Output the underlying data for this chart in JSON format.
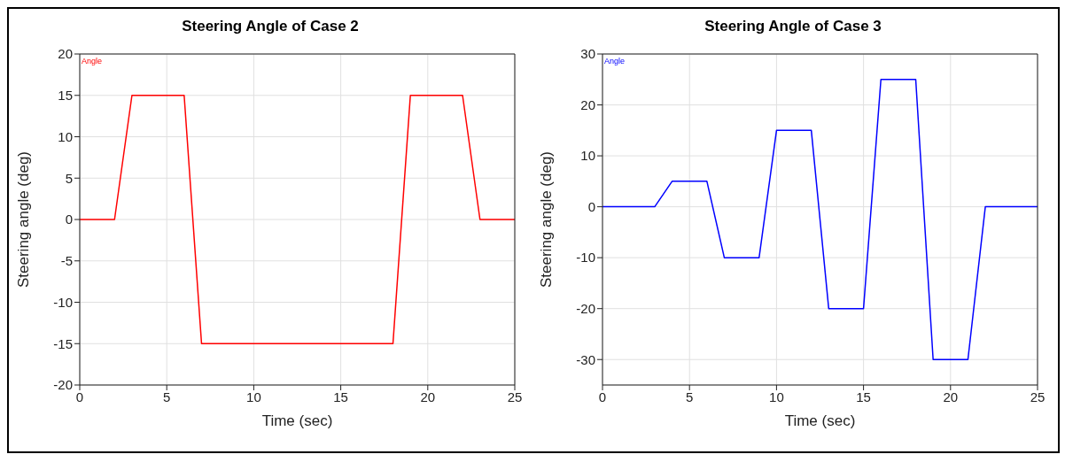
{
  "chart_data": [
    {
      "type": "line",
      "title": "Steering Angle of Case 2",
      "xlabel": "Time (sec)",
      "ylabel": "Steering angle (deg)",
      "x": [
        0,
        2,
        3,
        6,
        7,
        18,
        19,
        22,
        23,
        25
      ],
      "series": [
        {
          "name": "Angle",
          "color": "#ff0000",
          "values": [
            0,
            0,
            15,
            15,
            -15,
            -15,
            15,
            15,
            0,
            0
          ]
        }
      ],
      "xlim": [
        0,
        25
      ],
      "xticks": [
        0,
        5,
        10,
        15,
        20,
        25
      ],
      "ylim": [
        -20,
        20
      ],
      "yticks": [
        -20,
        -15,
        -10,
        -5,
        0,
        5,
        10,
        15,
        20
      ],
      "grid": true,
      "legend": "top left",
      "marker": "none",
      "line_style": "solid"
    },
    {
      "type": "line",
      "title": "Steering Angle of Case 3",
      "xlabel": "Time (sec)",
      "ylabel": "Steering angle (deg)",
      "x": [
        0,
        3,
        4,
        6,
        7,
        9,
        10,
        12,
        13,
        15,
        16,
        18,
        19,
        21,
        22,
        25
      ],
      "series": [
        {
          "name": "Angle",
          "color": "#0000ff",
          "values": [
            0,
            0,
            5,
            5,
            -10,
            -10,
            15,
            15,
            -20,
            -20,
            25,
            25,
            -30,
            -30,
            0,
            0
          ]
        }
      ],
      "xlim": [
        0,
        25
      ],
      "xticks": [
        0,
        5,
        10,
        15,
        20,
        25
      ],
      "ylim": [
        -35,
        30
      ],
      "yticks": [
        -30,
        -20,
        -10,
        0,
        10,
        20,
        30
      ],
      "grid": true,
      "legend": "top left",
      "marker": "none",
      "line_style": "solid"
    }
  ]
}
